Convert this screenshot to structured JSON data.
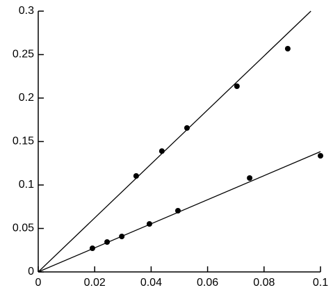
{
  "chart_data": {
    "type": "scatter",
    "xlim": [
      0,
      0.1
    ],
    "ylim": [
      0,
      0.3
    ],
    "xticks": [
      0,
      0.02,
      0.04,
      0.06,
      0.08,
      0.1
    ],
    "yticks": [
      0,
      0.05,
      0.1,
      0.15,
      0.2,
      0.25,
      0.3
    ],
    "grid": false,
    "series": [
      {
        "type": "scatter",
        "color": "#000000",
        "x": [
          0.0347,
          0.0438,
          0.0527,
          0.0704,
          0.0884
        ],
        "values": [
          0.1104,
          0.139,
          0.1656,
          0.2136,
          0.2568
        ]
      },
      {
        "type": "scatter",
        "color": "#000000",
        "x": [
          0.0192,
          0.0244,
          0.0296,
          0.0394,
          0.0495,
          0.0749,
          0.1
        ],
        "values": [
          0.0272,
          0.0344,
          0.0408,
          0.0552,
          0.0704,
          0.108,
          0.1336
        ]
      },
      {
        "type": "line",
        "color": "#000000",
        "x": [
          0,
          0.0966
        ],
        "values": [
          0,
          0.3
        ]
      },
      {
        "type": "line",
        "color": "#000000",
        "x": [
          0,
          0.1
        ],
        "values": [
          0,
          0.1384
        ]
      }
    ]
  }
}
